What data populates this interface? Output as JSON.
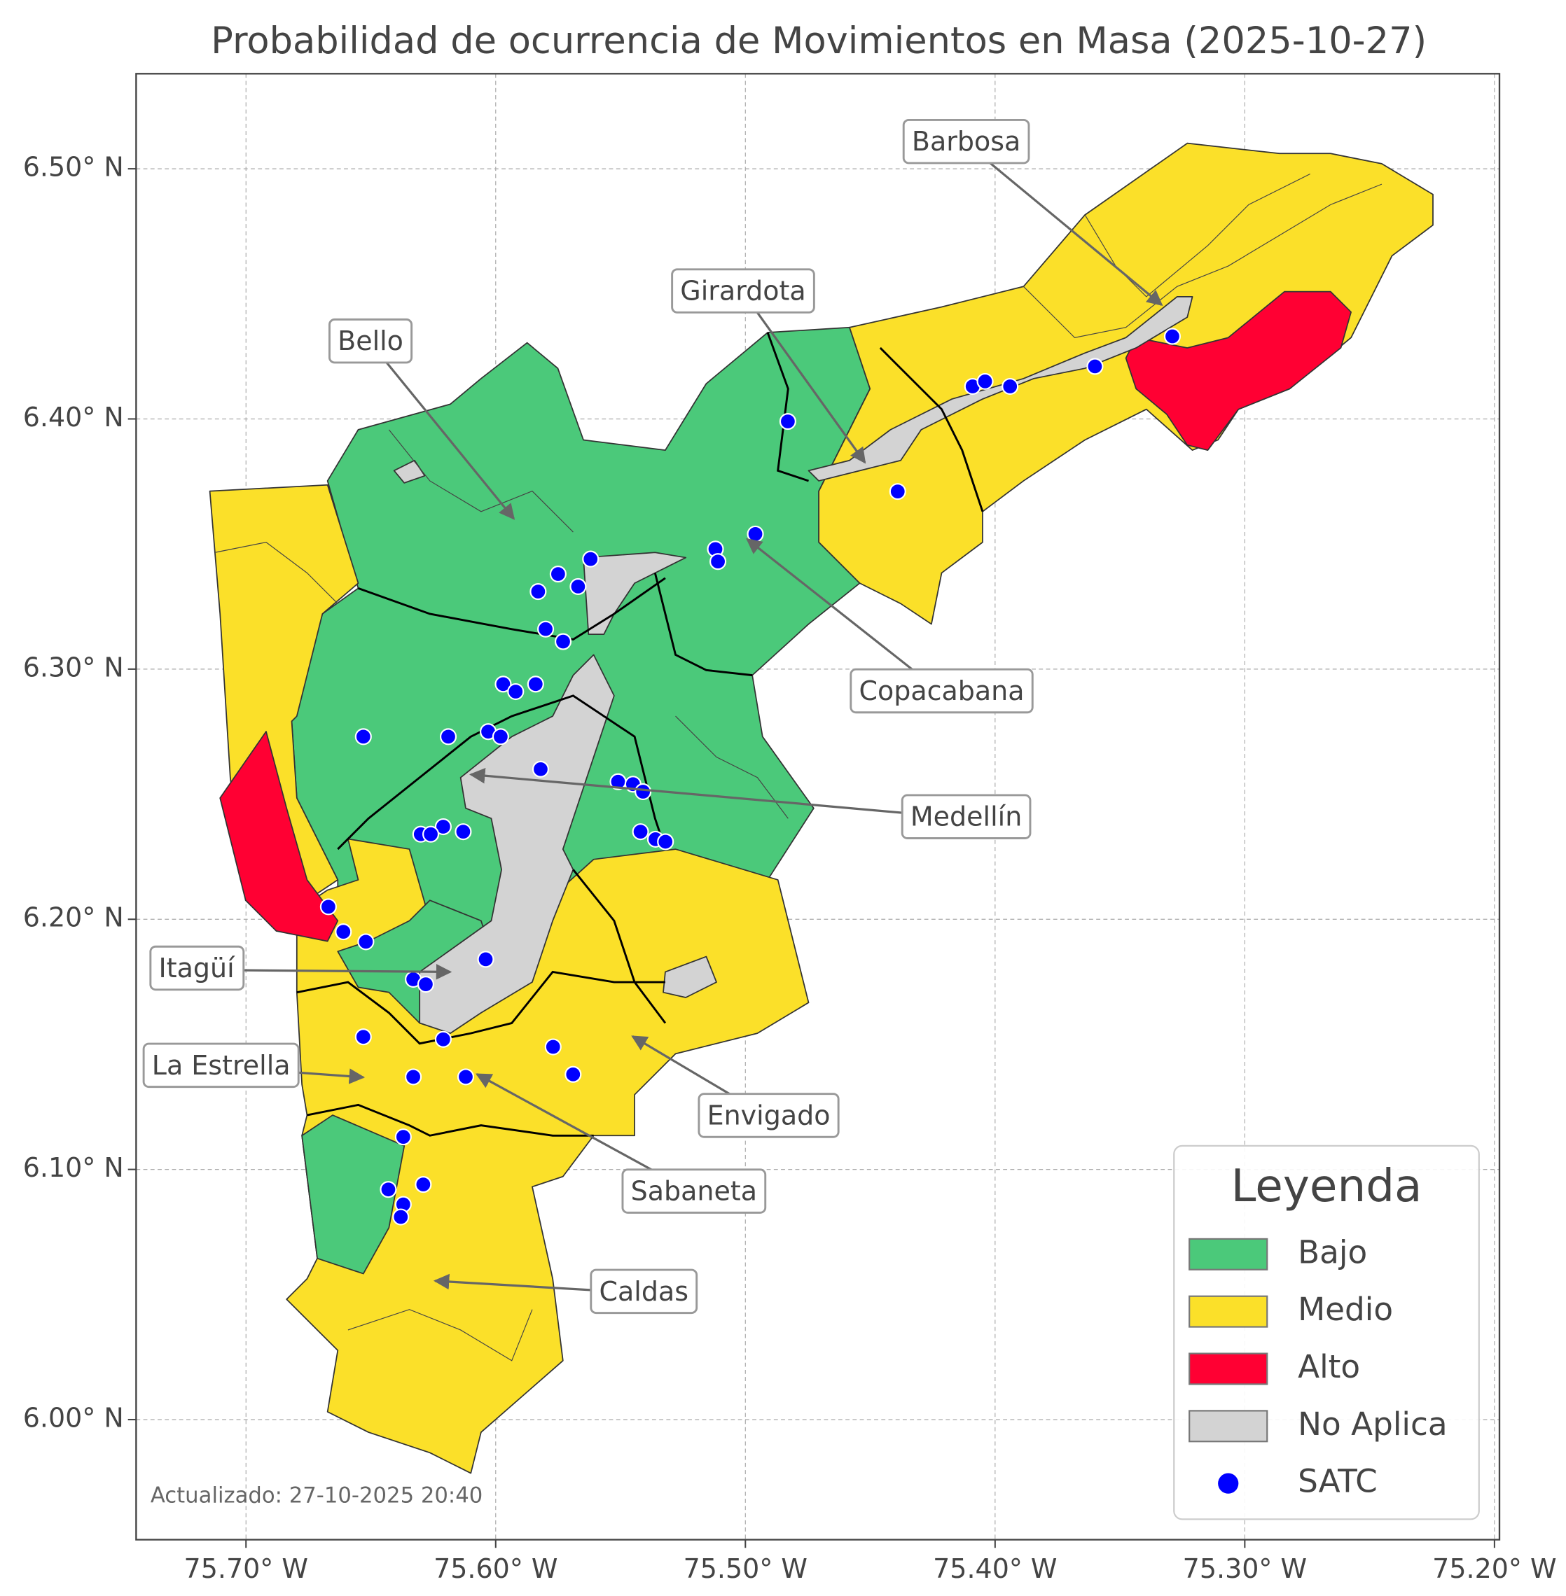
{
  "chart_data": {
    "type": "map",
    "title": "Probabilidad de ocurrencia de Movimientos en Masa (2025-10-27)",
    "xlim": [
      -75.744,
      -75.198
    ],
    "ylim": [
      5.952,
      6.538
    ],
    "xticks": [
      {
        "value": -75.7,
        "label": "75.70° W"
      },
      {
        "value": -75.6,
        "label": "75.60° W"
      },
      {
        "value": -75.5,
        "label": "75.50° W"
      },
      {
        "value": -75.4,
        "label": "75.40° W"
      },
      {
        "value": -75.3,
        "label": "75.30° W"
      },
      {
        "value": -75.2,
        "label": "75.20° W"
      }
    ],
    "yticks": [
      {
        "value": 6.0,
        "label": "6.00° N"
      },
      {
        "value": 6.1,
        "label": "6.10° N"
      },
      {
        "value": 6.2,
        "label": "6.20° N"
      },
      {
        "value": 6.3,
        "label": "6.30° N"
      },
      {
        "value": 6.4,
        "label": "6.40° N"
      },
      {
        "value": 6.5,
        "label": "6.50° N"
      }
    ],
    "grid": true,
    "legend": {
      "title": "Leyenda",
      "position": "lower right",
      "items": [
        {
          "name": "Bajo",
          "color": "#4bc97a"
        },
        {
          "name": "Medio",
          "color": "#fbe029"
        },
        {
          "name": "Alto",
          "color": "#ff0033"
        },
        {
          "name": "No Aplica",
          "color": "#d3d3d3"
        }
      ]
    },
    "series": [
      {
        "name": "SATC",
        "color": "#0000ff",
        "x": [
          -75.483,
          -75.409,
          -75.404,
          -75.394,
          -75.36,
          -75.329,
          -75.439,
          -75.496,
          -75.512,
          -75.511,
          -75.562,
          -75.575,
          -75.583,
          -75.567,
          -75.58,
          -75.573,
          -75.597,
          -75.592,
          -75.584,
          -75.653,
          -75.619,
          -75.603,
          -75.598,
          -75.582,
          -75.551,
          -75.545,
          -75.541,
          -75.542,
          -75.536,
          -75.532,
          -75.621,
          -75.63,
          -75.626,
          -75.613,
          -75.667,
          -75.661,
          -75.652,
          -75.604,
          -75.633,
          -75.628,
          -75.653,
          -75.621,
          -75.577,
          -75.569,
          -75.633,
          -75.612,
          -75.637,
          -75.643,
          -75.629,
          -75.637,
          -75.638
        ],
        "y": [
          6.399,
          6.413,
          6.415,
          6.413,
          6.421,
          6.433,
          6.371,
          6.354,
          6.348,
          6.343,
          6.344,
          6.338,
          6.331,
          6.333,
          6.316,
          6.311,
          6.294,
          6.291,
          6.294,
          6.273,
          6.273,
          6.275,
          6.273,
          6.26,
          6.255,
          6.254,
          6.251,
          6.235,
          6.232,
          6.231,
          6.237,
          6.234,
          6.234,
          6.235,
          6.205,
          6.195,
          6.191,
          6.184,
          6.176,
          6.174,
          6.153,
          6.152,
          6.149,
          6.138,
          6.137,
          6.137,
          6.113,
          6.092,
          6.094,
          6.086,
          6.081
        ]
      }
    ],
    "annotations": [
      "Barbosa",
      "Girardota",
      "Bello",
      "Copacabana",
      "Medellín",
      "Itagüí",
      "La Estrella",
      "Envigado",
      "Sabaneta",
      "Caldas"
    ],
    "footnote": "Actualizado: 27-10-2025 20:40"
  }
}
